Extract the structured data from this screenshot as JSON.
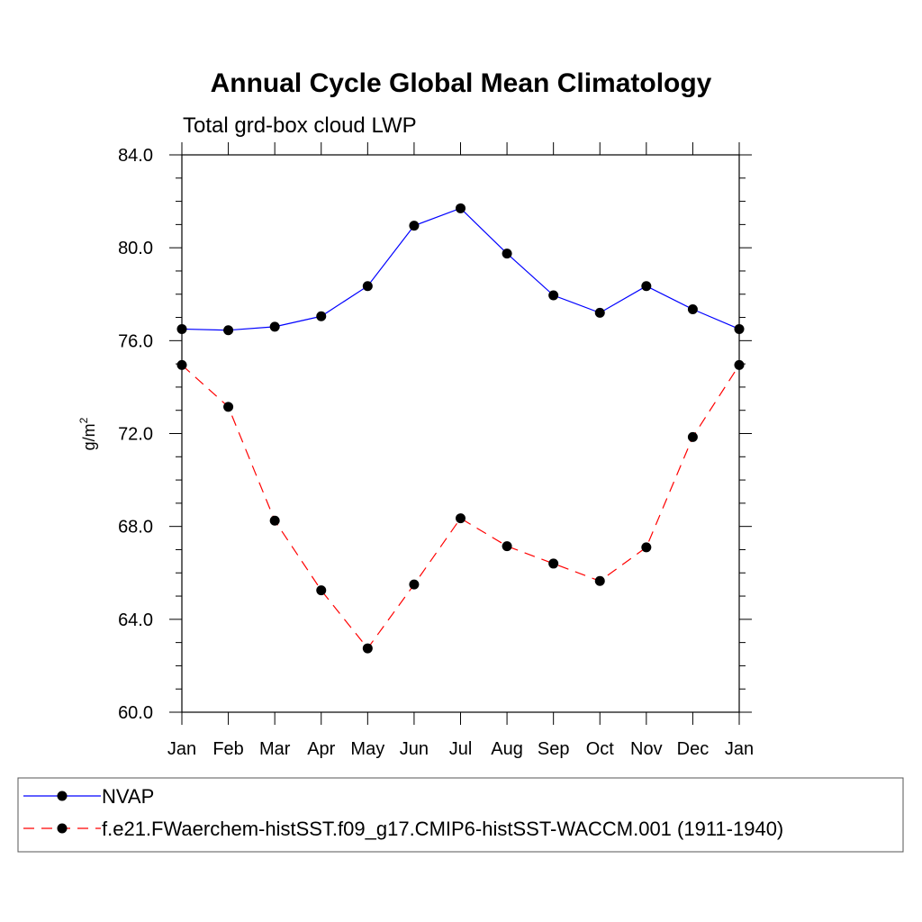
{
  "chart_data": {
    "type": "line",
    "title": "Annual Cycle Global Mean Climatology",
    "subtitle": "Total grd-box cloud LWP",
    "ylabel_main": "g/m",
    "ylabel_sup": "2",
    "xlabel": "",
    "categories": [
      "Jan",
      "Feb",
      "Mar",
      "Apr",
      "May",
      "Jun",
      "Jul",
      "Aug",
      "Sep",
      "Oct",
      "Nov",
      "Dec",
      "Jan"
    ],
    "ylim": [
      60,
      84
    ],
    "yticks": [
      60,
      64,
      68,
      72,
      76,
      80,
      84
    ],
    "ytick_labels": [
      "60.0",
      "64.0",
      "68.0",
      "72.0",
      "76.0",
      "80.0",
      "84.0"
    ],
    "grid": false,
    "legend_position": "bottom",
    "series": [
      {
        "name": "NVAP",
        "color": "#0000ff",
        "dash": "solid",
        "values": [
          76.5,
          76.45,
          76.6,
          77.05,
          78.35,
          80.95,
          81.7,
          79.75,
          77.95,
          77.2,
          78.35,
          77.35,
          76.5
        ]
      },
      {
        "name": "f.e21.FWaerchem-histSST.f09_g17.CMIP6-histSST-WACCM.001 (1911-1940)",
        "color": "#ff0000",
        "dash": "dashed",
        "values": [
          74.95,
          73.15,
          68.25,
          65.25,
          62.75,
          65.5,
          68.35,
          67.15,
          66.4,
          65.65,
          67.1,
          71.85,
          74.95
        ]
      }
    ]
  }
}
